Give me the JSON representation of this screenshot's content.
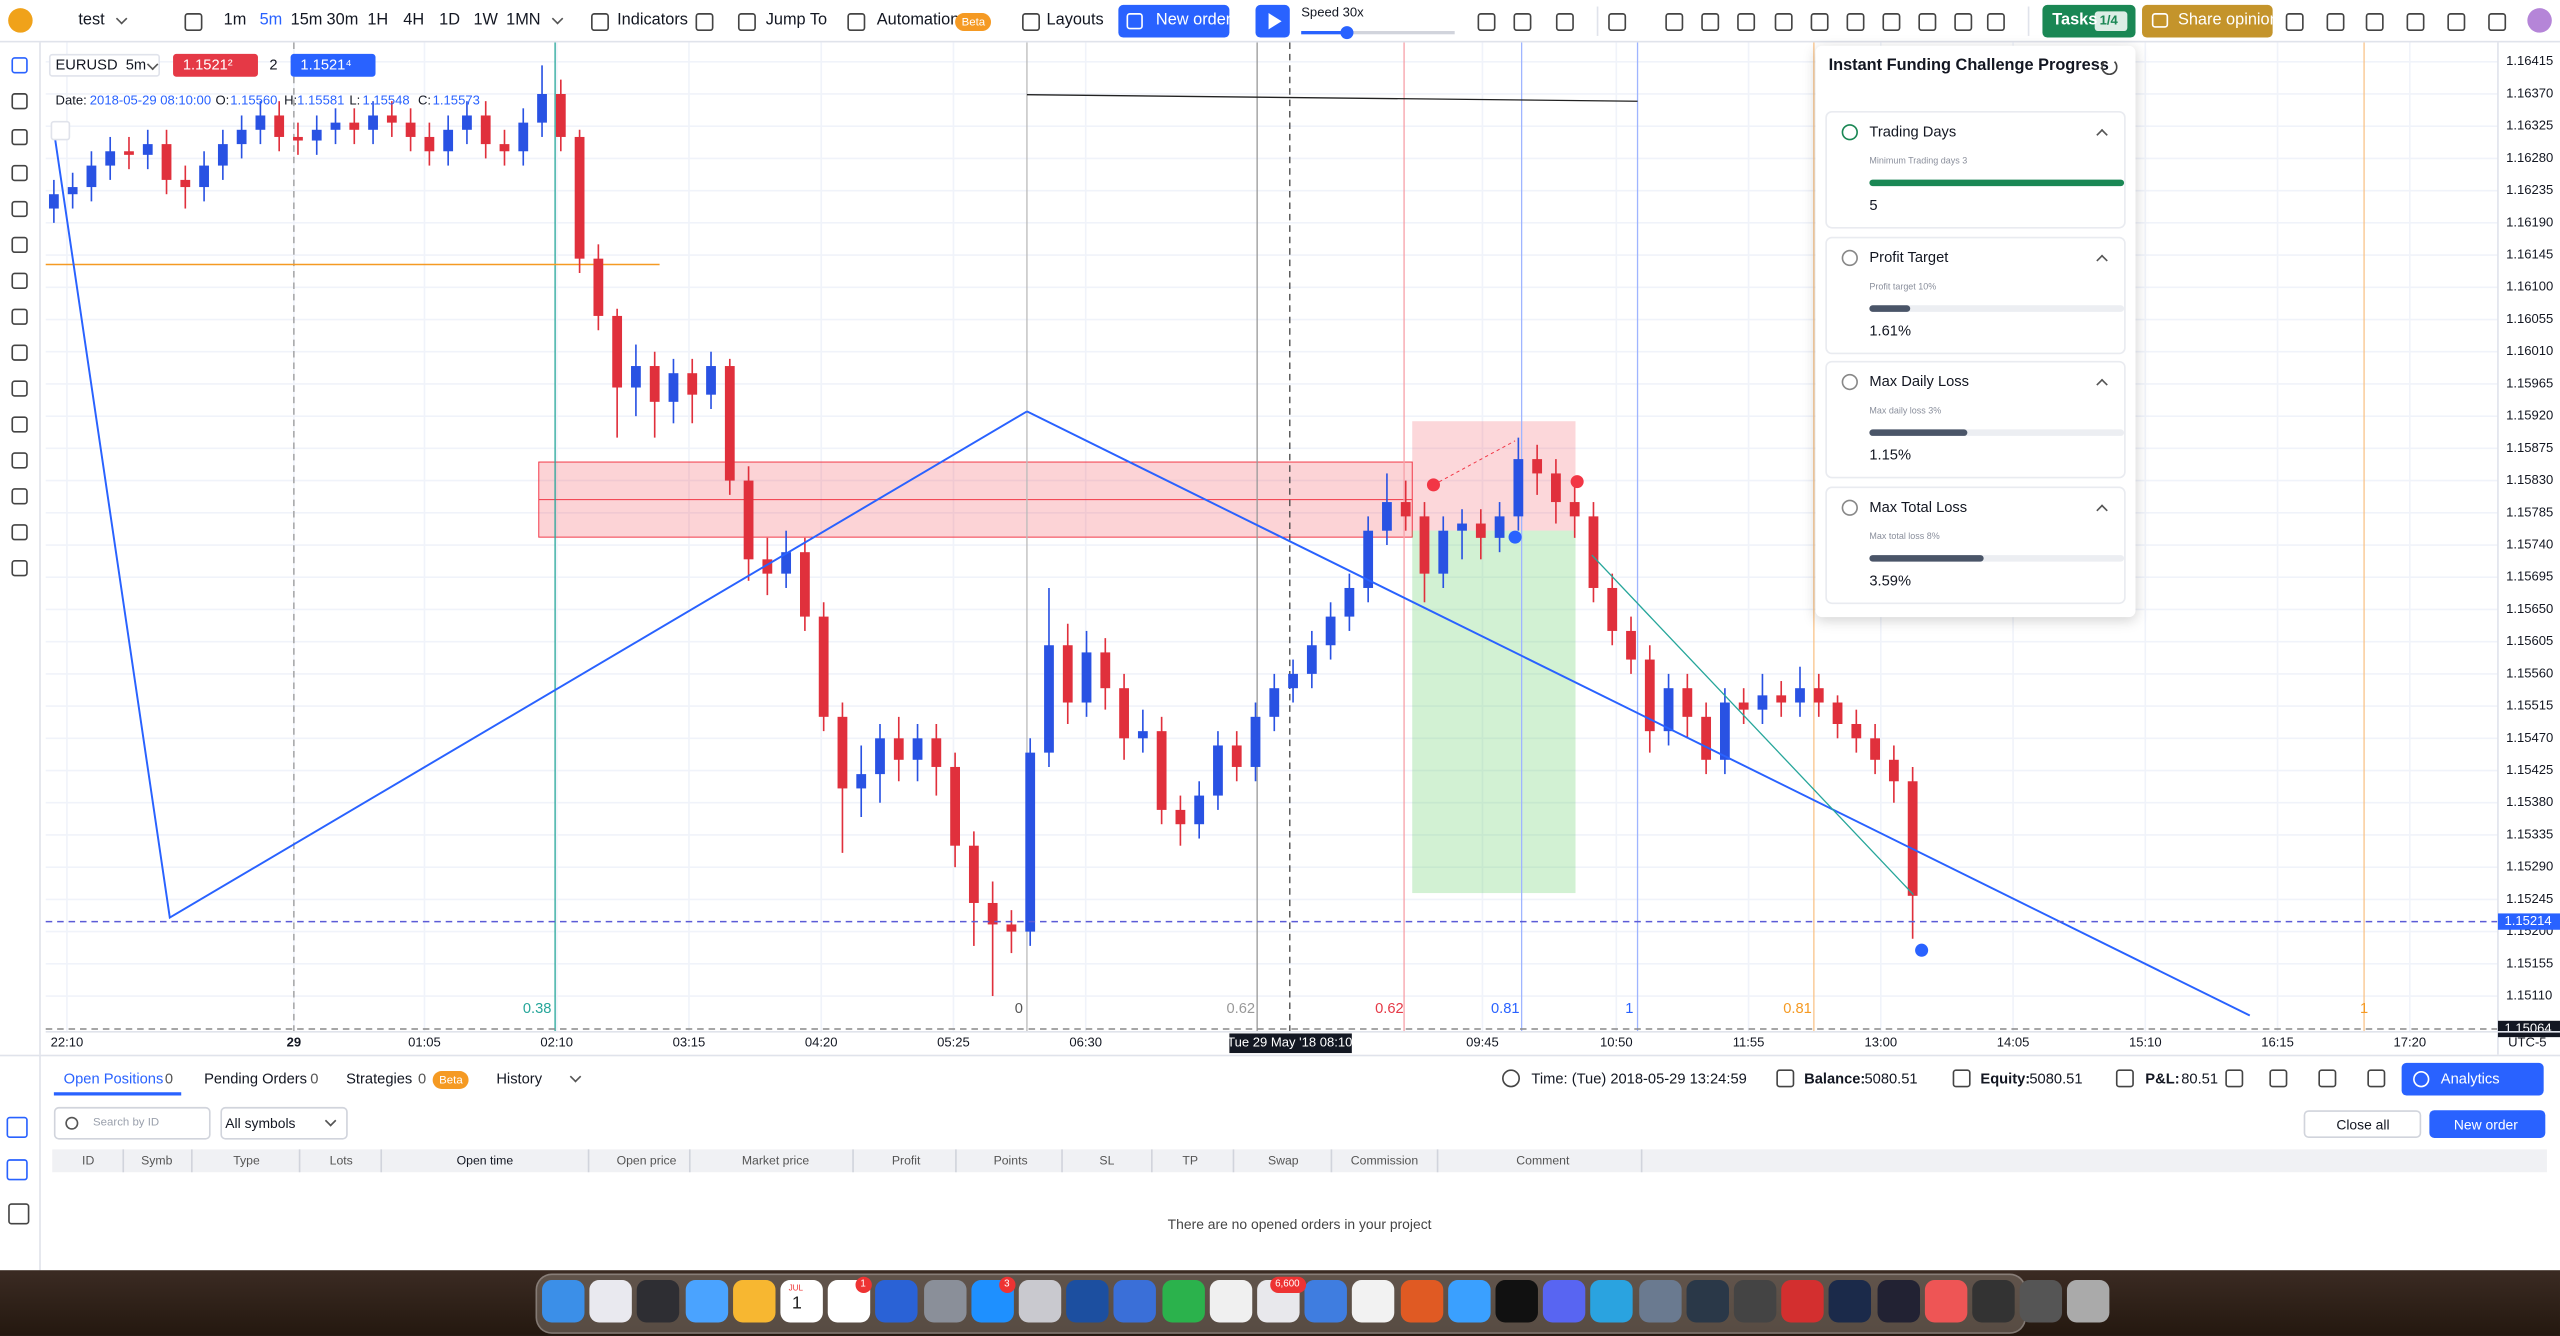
{
  "toolbar": {
    "project": "test",
    "timeframes": [
      "1m",
      "5m",
      "15m",
      "30m",
      "1H",
      "4H",
      "1D",
      "1W",
      "1MN"
    ],
    "indicators": "Indicators",
    "jump_to": "Jump To",
    "automation": "Automation",
    "beta": "Beta",
    "layouts": "Layouts",
    "new_order": "New order",
    "speed": "Speed 30x",
    "tasks": "Tasks",
    "tasks_count": "1/4",
    "share": "Share opinion"
  },
  "legend": {
    "symbol": "EURUSD",
    "timeframe": "5m",
    "bid": "1.1521²",
    "spread": "2",
    "ask": "1.1521⁴",
    "ohlc": [
      {
        "label": "Date:",
        "value": "2018-05-29 08:10:00"
      },
      {
        "label": "O:",
        "value": "1.15560"
      },
      {
        "label": "H:",
        "value": "1.15581"
      },
      {
        "label": "L:",
        "value": "1.15548"
      },
      {
        "label": "C:",
        "value": "1.15573"
      }
    ]
  },
  "chart": {
    "type": "candlestick",
    "up_color": "#2952e3",
    "down_color": "#e0303c",
    "grid": true,
    "ylim": [
      1.1506,
      1.16442
    ],
    "yticks": [
      1.16415,
      {
        "value": 1.1637,
        "label": "1.16370"
      },
      1.16325,
      {
        "value": 1.1628,
        "label": "1.16280"
      },
      1.16235,
      {
        "value": 1.1619,
        "label": "1.16190"
      },
      1.16145,
      {
        "value": 1.161,
        "label": "1.16100"
      },
      1.16055,
      {
        "value": 1.1601,
        "label": "1.16010"
      },
      1.15965,
      {
        "value": 1.1592,
        "label": "1.15920"
      },
      1.15875,
      {
        "value": 1.1583,
        "label": "1.15830"
      },
      1.15785,
      {
        "value": 1.1574,
        "label": "1.15740"
      },
      1.15695,
      {
        "value": 1.1565,
        "label": "1.15650"
      },
      1.15605,
      {
        "value": 1.1556,
        "label": "1.15560"
      },
      1.15515,
      {
        "value": 1.1547,
        "label": "1.15470"
      },
      1.15425,
      {
        "value": 1.1538,
        "label": "1.15380"
      },
      1.15335,
      {
        "value": 1.1529,
        "label": "1.15290"
      },
      1.15245,
      {
        "value": 1.152,
        "label": "1.15200"
      },
      1.15155,
      {
        "value": 1.1511,
        "label": "1.15110"
      }
    ],
    "price_lines": [
      {
        "value": 1.15214,
        "label": "1.15214"
      },
      {
        "value": 1.15064,
        "label": "1.15064"
      }
    ],
    "time_labels": [
      "22:10",
      "29",
      "01:05",
      "02:10",
      "03:15",
      "04:20",
      "05:25",
      "06:30",
      "09:45",
      "10:50",
      "11:55",
      "13:00",
      "14:05",
      "15:10",
      "16:15",
      "17:20"
    ],
    "timezone": "UTC-5",
    "crosshair_label": "Tue 29 May '18 08:10",
    "level_labels": [
      "0.38",
      "0",
      "0.62",
      "0.62",
      "0.81",
      "1",
      "0.81",
      "1"
    ],
    "candles": [
      [
        1.1621,
        1.1625,
        1.1619,
        1.1623
      ],
      [
        1.1623,
        1.1626,
        1.1621,
        1.1624
      ],
      [
        1.1624,
        1.1629,
        1.1622,
        1.1627
      ],
      [
        1.1627,
        1.1631,
        1.1625,
        1.1629
      ],
      [
        1.1629,
        1.1631,
        1.16265,
        1.16285
      ],
      [
        1.16285,
        1.1632,
        1.16265,
        1.163
      ],
      [
        1.163,
        1.1632,
        1.1623,
        1.1625
      ],
      [
        1.1625,
        1.1627,
        1.1621,
        1.1624
      ],
      [
        1.1624,
        1.1629,
        1.1622,
        1.1627
      ],
      [
        1.1627,
        1.1632,
        1.1625,
        1.163
      ],
      [
        1.163,
        1.1634,
        1.1628,
        1.1632
      ],
      [
        1.1632,
        1.1636,
        1.163,
        1.1634
      ],
      [
        1.1634,
        1.1636,
        1.1629,
        1.1631
      ],
      [
        1.1631,
        1.1633,
        1.16285,
        1.16305
      ],
      [
        1.16305,
        1.1634,
        1.16285,
        1.1632
      ],
      [
        1.1632,
        1.1635,
        1.163,
        1.1633
      ],
      [
        1.1633,
        1.1635,
        1.163,
        1.1632
      ],
      [
        1.1632,
        1.1636,
        1.163,
        1.1634
      ],
      [
        1.1634,
        1.1636,
        1.1631,
        1.1633
      ],
      [
        1.1633,
        1.1635,
        1.1629,
        1.1631
      ],
      [
        1.1631,
        1.1633,
        1.1627,
        1.1629
      ],
      [
        1.1629,
        1.1634,
        1.1627,
        1.1632
      ],
      [
        1.1632,
        1.1636,
        1.163,
        1.1634
      ],
      [
        1.1634,
        1.1636,
        1.1628,
        1.163
      ],
      [
        1.163,
        1.1632,
        1.1627,
        1.1629
      ],
      [
        1.1629,
        1.1635,
        1.1627,
        1.1633
      ],
      [
        1.1633,
        1.1641,
        1.1631,
        1.1637
      ],
      [
        1.1637,
        1.1639,
        1.1629,
        1.1631
      ],
      [
        1.1631,
        1.1632,
        1.1612,
        1.1614
      ],
      [
        1.1614,
        1.1616,
        1.1604,
        1.1606
      ],
      [
        1.1606,
        1.1607,
        1.1589,
        1.1596
      ],
      [
        1.1596,
        1.1602,
        1.1592,
        1.1599
      ],
      [
        1.1599,
        1.1601,
        1.1589,
        1.1594
      ],
      [
        1.1594,
        1.16,
        1.1591,
        1.1598
      ],
      [
        1.1598,
        1.16,
        1.1591,
        1.1595
      ],
      [
        1.1595,
        1.1601,
        1.1593,
        1.1599
      ],
      [
        1.1599,
        1.16,
        1.1581,
        1.1583
      ],
      [
        1.1583,
        1.1585,
        1.1569,
        1.1572
      ],
      [
        1.1572,
        1.1575,
        1.1567,
        1.157
      ],
      [
        1.157,
        1.1576,
        1.1568,
        1.1573
      ],
      [
        1.1573,
        1.1575,
        1.1562,
        1.1564
      ],
      [
        1.1564,
        1.1566,
        1.1548,
        1.155
      ],
      [
        1.155,
        1.1552,
        1.1531,
        1.154
      ],
      [
        1.154,
        1.1546,
        1.1536,
        1.1542
      ],
      [
        1.1542,
        1.1549,
        1.1538,
        1.1547
      ],
      [
        1.1547,
        1.155,
        1.1541,
        1.1544
      ],
      [
        1.1544,
        1.1549,
        1.1541,
        1.1547
      ],
      [
        1.1547,
        1.1549,
        1.1539,
        1.1543
      ],
      [
        1.1543,
        1.1545,
        1.1529,
        1.1532
      ],
      [
        1.1532,
        1.1534,
        1.1518,
        1.1524
      ],
      [
        1.1524,
        1.1527,
        1.1511,
        1.1521
      ],
      [
        1.1521,
        1.1523,
        1.1517,
        1.152
      ],
      [
        1.152,
        1.1547,
        1.1518,
        1.1545
      ],
      [
        1.1545,
        1.1568,
        1.1543,
        1.156
      ],
      [
        1.156,
        1.1563,
        1.1549,
        1.1552
      ],
      [
        1.1552,
        1.1562,
        1.155,
        1.1559
      ],
      [
        1.1559,
        1.1561,
        1.1551,
        1.1554
      ],
      [
        1.1554,
        1.1556,
        1.1544,
        1.1547
      ],
      [
        1.1547,
        1.1551,
        1.1545,
        1.1548
      ],
      [
        1.1548,
        1.155,
        1.1535,
        1.1537
      ],
      [
        1.1537,
        1.1539,
        1.1532,
        1.1535
      ],
      [
        1.1535,
        1.1541,
        1.1533,
        1.1539
      ],
      [
        1.1539,
        1.1548,
        1.1537,
        1.1546
      ],
      [
        1.1546,
        1.1548,
        1.1541,
        1.1543
      ],
      [
        1.1543,
        1.1552,
        1.1541,
        1.155
      ],
      [
        1.155,
        1.1556,
        1.1548,
        1.1554
      ],
      [
        1.1554,
        1.1558,
        1.1552,
        1.1556
      ],
      [
        1.1556,
        1.1562,
        1.1554,
        1.156
      ],
      [
        1.156,
        1.1566,
        1.1558,
        1.1564
      ],
      [
        1.1564,
        1.157,
        1.1562,
        1.1568
      ],
      [
        1.1568,
        1.1578,
        1.1566,
        1.1576
      ],
      [
        1.1576,
        1.1584,
        1.1574,
        1.158
      ],
      [
        1.158,
        1.1583,
        1.1576,
        1.1578
      ],
      [
        1.1578,
        1.158,
        1.1566,
        1.157
      ],
      [
        1.157,
        1.1578,
        1.1568,
        1.1576
      ],
      [
        1.1576,
        1.1579,
        1.1572,
        1.1577
      ],
      [
        1.1577,
        1.1579,
        1.1572,
        1.1575
      ],
      [
        1.1575,
        1.158,
        1.1573,
        1.1578
      ],
      [
        1.1578,
        1.1589,
        1.1576,
        1.1586
      ],
      [
        1.1586,
        1.1588,
        1.1581,
        1.1584
      ],
      [
        1.1584,
        1.1586,
        1.1577,
        1.158
      ],
      [
        1.158,
        1.1583,
        1.1575,
        1.1578
      ],
      [
        1.1578,
        1.158,
        1.1566,
        1.1568
      ],
      [
        1.1568,
        1.157,
        1.156,
        1.1562
      ],
      [
        1.1562,
        1.1564,
        1.1556,
        1.1558
      ],
      [
        1.1558,
        1.156,
        1.1545,
        1.1548
      ],
      [
        1.1548,
        1.1556,
        1.1546,
        1.1554
      ],
      [
        1.1554,
        1.1556,
        1.1547,
        1.155
      ],
      [
        1.155,
        1.1552,
        1.1542,
        1.1544
      ],
      [
        1.1544,
        1.1554,
        1.1542,
        1.1552
      ],
      [
        1.1552,
        1.1554,
        1.1549,
        1.1551
      ],
      [
        1.1551,
        1.1556,
        1.1549,
        1.1553
      ],
      [
        1.1553,
        1.1555,
        1.155,
        1.1552
      ],
      [
        1.1552,
        1.1557,
        1.155,
        1.1554
      ],
      [
        1.1554,
        1.1556,
        1.155,
        1.1552
      ],
      [
        1.1552,
        1.1553,
        1.1547,
        1.1549
      ],
      [
        1.1549,
        1.1551,
        1.1545,
        1.1547
      ],
      [
        1.1547,
        1.1549,
        1.1542,
        1.1544
      ],
      [
        1.1544,
        1.1546,
        1.1538,
        1.1541
      ],
      [
        1.1541,
        1.1543,
        1.1519,
        1.1525
      ]
    ]
  },
  "challenge": {
    "title": "Instant Funding Challenge Progress",
    "items": [
      {
        "name": "Trading Days",
        "caption": "Minimum Trading days 3",
        "value": "5",
        "progress": 100
      },
      {
        "name": "Profit Target",
        "caption": "Profit target 10%",
        "value": "1.61%",
        "progress": 16.1
      },
      {
        "name": "Max Daily Loss",
        "caption": "Max daily loss 3%",
        "value": "1.15%",
        "progress": 38.3
      },
      {
        "name": "Max Total Loss",
        "caption": "Max total loss 8%",
        "value": "3.59%",
        "progress": 44.9
      }
    ]
  },
  "positions_panel": {
    "tabs": [
      {
        "label": "Open Positions",
        "count": 0
      },
      {
        "label": "Pending Orders",
        "count": 0
      },
      {
        "label": "Strategies",
        "count": 0
      },
      {
        "label": "History"
      }
    ],
    "beta": "Beta",
    "time": "Time: (Tue) 2018-05-29 13:24:59",
    "balance_label": "Balance:",
    "balance": "5080.51",
    "equity_label": "Equity:",
    "equity": "5080.51",
    "pnl_label": "P&L:",
    "pnl": "80.51",
    "analytics": "Analytics",
    "search_placeholder": "Search by ID",
    "symbols_filter": "All symbols",
    "close_all": "Close all",
    "new_order": "New order",
    "columns": [
      "ID",
      "Symb",
      "Type",
      "Lots",
      "Open time",
      "Open price",
      "Market price",
      "Profit",
      "Points",
      "SL",
      "TP",
      "Swap",
      "Commission",
      "Comment"
    ],
    "empty": "There are no opened orders in your project"
  },
  "dock": {
    "calendar_month": "JUL",
    "calendar_day": "1",
    "badges": [
      "1",
      "3",
      "6,600"
    ]
  }
}
